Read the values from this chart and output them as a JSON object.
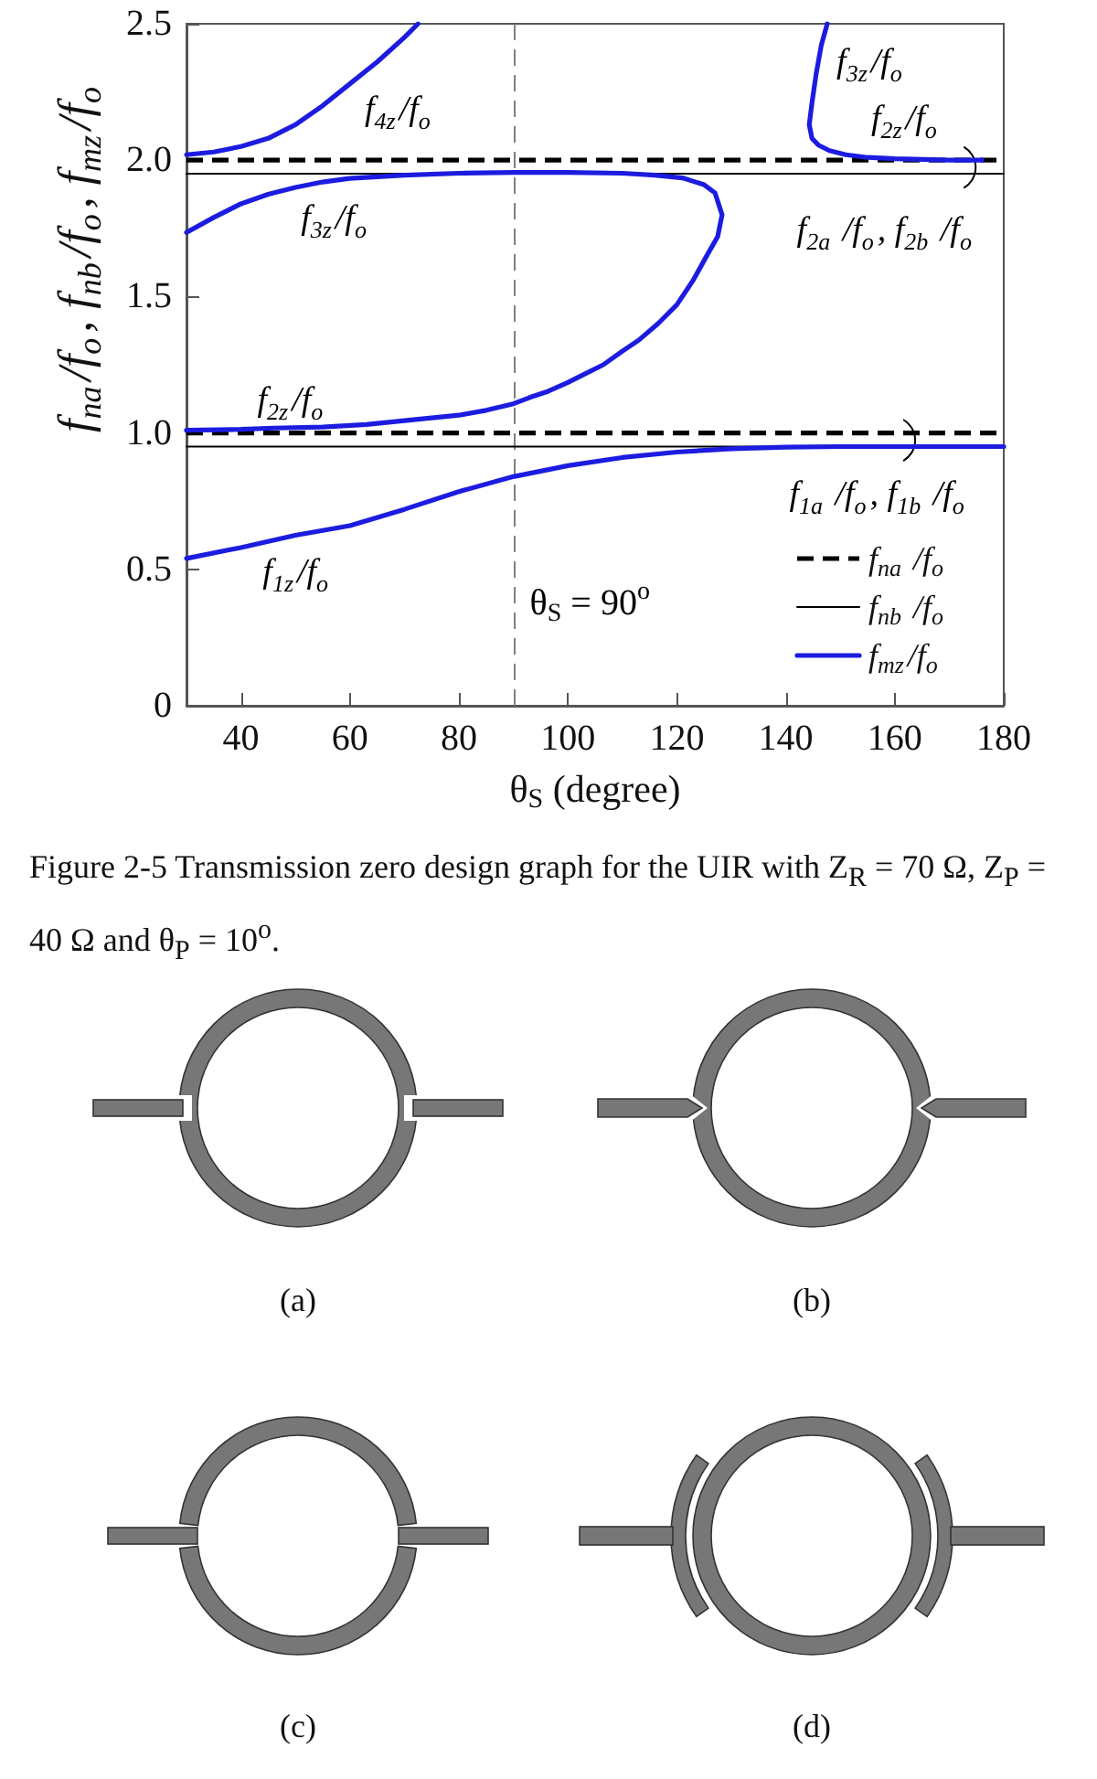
{
  "chart_data": {
    "type": "line",
    "xlabel": "θ$_{S}$ (degree)",
    "ylabel": "f$_{na}$/f$_{o}$, f$_{nb}$/f$_{o}$, f$_{mz}$/f$_{o}$",
    "xlim": [
      30,
      180
    ],
    "xticks": [
      40,
      60,
      80,
      100,
      120,
      140,
      160,
      180
    ],
    "ylim": [
      0,
      2.5
    ],
    "yticks": [
      0,
      0.5,
      {
        "value": 1,
        "label": "1.0"
      },
      1.5,
      {
        "value": 2,
        "label": "2.0"
      },
      2.5
    ],
    "legend": "bottom right",
    "series": [
      {
        "name": "f$_{na}$ /f$_{o}$",
        "color": "#000000",
        "line_style": "dashed",
        "x": [
          30,
          180
        ],
        "values": [
          2.0,
          2.0
        ]
      },
      {
        "name": "f$_{nb}$ /f$_{o}$",
        "color": "#000000",
        "x": [
          30,
          180
        ],
        "values": [
          1.95,
          1.95
        ]
      },
      {
        "name": "f$_{mz}$/f$_{o}$",
        "color": "#1c1ce0",
        "x": [
          30,
          35,
          40,
          45,
          50,
          55,
          60,
          65,
          70,
          72.5
        ],
        "values": [
          2.02,
          2.03,
          2.05,
          2.08,
          2.13,
          2.2,
          2.28,
          2.36,
          2.45,
          2.5
        ]
      },
      {
        "color": "#000000",
        "line_style": "dashed",
        "x": [
          30,
          180
        ],
        "values": [
          1.0,
          1.0
        ]
      },
      {
        "color": "#000000",
        "x": [
          30,
          180
        ],
        "values": [
          0.95,
          0.95
        ]
      },
      {
        "color": "#1c1ce0",
        "x": [
          30,
          35,
          40,
          45,
          50,
          55,
          60,
          70,
          80,
          90,
          100,
          110,
          116,
          121,
          125,
          127,
          128.3,
          127.5,
          125.5,
          123,
          120,
          116.5,
          113,
          110,
          106.5,
          103,
          100,
          96.4,
          93,
          90,
          85,
          80,
          70,
          63,
          55,
          46,
          40,
          30
        ],
        "values": [
          1.735,
          1.79,
          1.84,
          1.875,
          1.9,
          1.92,
          1.933,
          1.945,
          1.952,
          1.955,
          1.955,
          1.952,
          1.945,
          1.935,
          1.91,
          1.88,
          1.8,
          1.72,
          1.65,
          1.56,
          1.47,
          1.4,
          1.34,
          1.3,
          1.25,
          1.215,
          1.185,
          1.153,
          1.13,
          1.107,
          1.083,
          1.065,
          1.045,
          1.031,
          1.022,
          1.018,
          1.013,
          1.01
        ]
      },
      {
        "color": "#1c1ce0",
        "x": [
          147.6,
          146.5,
          145.6,
          144.8,
          144.3,
          144.8,
          146,
          148,
          151,
          155,
          160,
          170,
          176
        ],
        "values": [
          2.5,
          2.42,
          2.32,
          2.21,
          2.13,
          2.08,
          2.055,
          2.035,
          2.02,
          2.01,
          2.005,
          2.0,
          2.0
        ]
      },
      {
        "color": "#1c1ce0",
        "x": [
          30,
          40,
          50,
          60,
          70,
          80,
          90,
          100,
          110,
          120,
          130,
          140,
          150,
          165,
          180
        ],
        "values": [
          0.54,
          0.58,
          0.625,
          0.66,
          0.72,
          0.785,
          0.84,
          0.88,
          0.91,
          0.93,
          0.942,
          0.948,
          0.95,
          0.95,
          0.95
        ]
      }
    ],
    "ref_lines": [
      {
        "axis": "x",
        "value": 90,
        "label": "θ$_{S}$ = 90$^{o}$",
        "color": "#808080",
        "line_style": "dashed"
      }
    ],
    "annotations": [
      {
        "text": "f$_{4z}$/f$_{o}$",
        "x": 60,
        "y": 2.28
      },
      {
        "text": "f$_{3z}$/f$_{o}$",
        "x": 55,
        "y": 1.92
      },
      {
        "text": "f$_{2z}$/f$_{o}$",
        "x": 46,
        "y": 1.018
      },
      {
        "text": "f$_{1z}$/f$_{o}$",
        "x": 50,
        "y": 0.625
      },
      {
        "text": "f$_{3z}$/f$_{o}$",
        "x": 145.6,
        "y": 2.32
      },
      {
        "text": "f$_{2z}$/f$_{o}$",
        "x": 160,
        "y": 2.005
      },
      {
        "text": "f$_{2a}$ /f$_{o}$, f$_{2b}$ /f$_{o}$",
        "x": 173.5,
        "y": 1.95
      },
      {
        "text": "f$_{1a}$ /f$_{o}$, f$_{1b}$ /f$_{o}$",
        "x": 162.4,
        "y": 0.95
      },
      "Figure 2-5 Transmission zero design graph for the UIR with Z$_{R}$ = 70 Ω, Z$_{P}$ = 40 Ω and θ$_{P}$ = 10$^{o}$.",
      "(a)",
      "(b)",
      "(c)",
      "(d)"
    ]
  }
}
